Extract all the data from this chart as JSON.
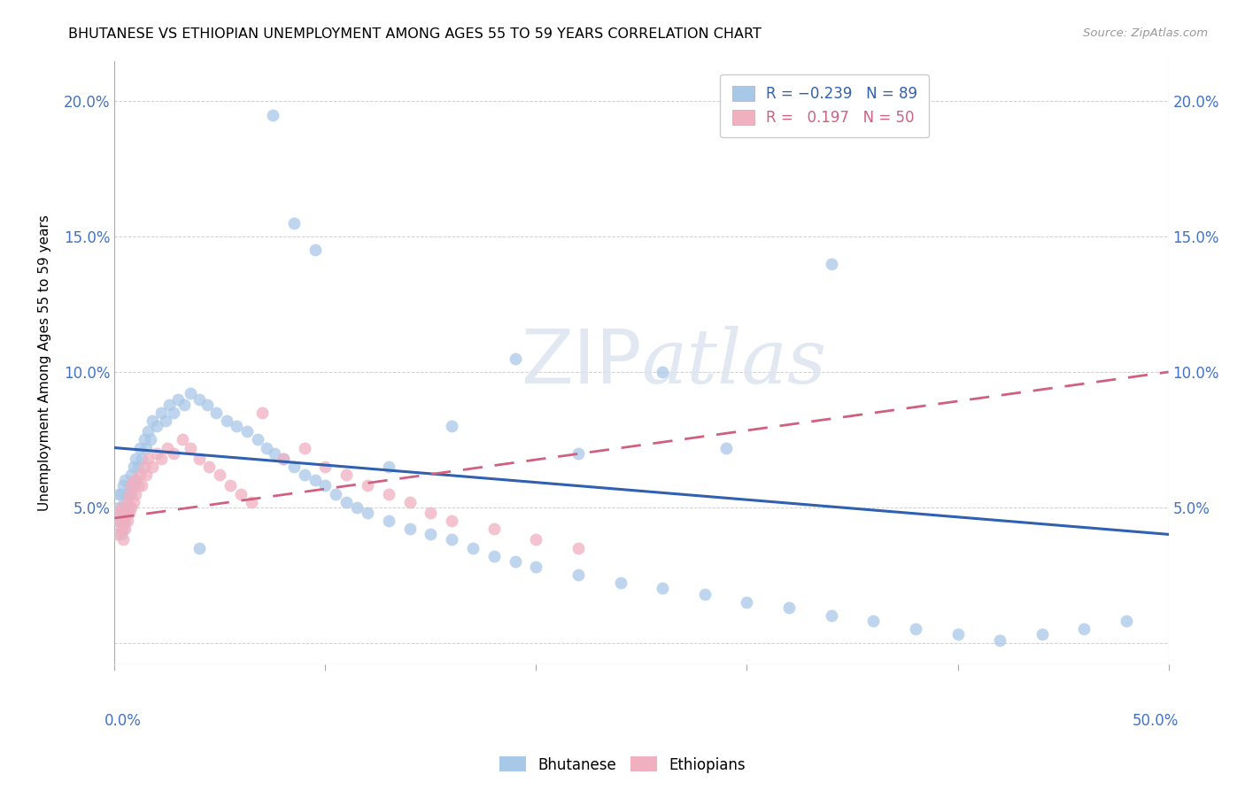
{
  "title": "BHUTANESE VS ETHIOPIAN UNEMPLOYMENT AMONG AGES 55 TO 59 YEARS CORRELATION CHART",
  "source": "Source: ZipAtlas.com",
  "ylabel": "Unemployment Among Ages 55 to 59 years",
  "yticks": [
    0.0,
    0.05,
    0.1,
    0.15,
    0.2
  ],
  "ytick_labels": [
    "",
    "5.0%",
    "10.0%",
    "15.0%",
    "20.0%"
  ],
  "xlim": [
    0.0,
    0.5
  ],
  "ylim": [
    -0.008,
    0.215
  ],
  "bhutanese_R": -0.239,
  "bhutanese_N": 89,
  "ethiopians_R": 0.197,
  "ethiopians_N": 50,
  "blue_color": "#a8c8e8",
  "pink_color": "#f0b0c0",
  "blue_line_color": "#3060b0",
  "pink_line_color": "#d06080",
  "watermark_color": "#e8e8f0",
  "blue_trend_x0": 0.0,
  "blue_trend_y0": 0.072,
  "blue_trend_x1": 0.5,
  "blue_trend_y1": 0.04,
  "pink_trend_x0": 0.0,
  "pink_trend_y0": 0.046,
  "pink_trend_x1": 0.5,
  "pink_trend_y1": 0.1,
  "bhutanese_x": [
    0.001,
    0.002,
    0.002,
    0.003,
    0.003,
    0.003,
    0.004,
    0.004,
    0.004,
    0.005,
    0.005,
    0.005,
    0.006,
    0.006,
    0.007,
    0.007,
    0.008,
    0.008,
    0.009,
    0.009,
    0.01,
    0.01,
    0.011,
    0.012,
    0.013,
    0.014,
    0.015,
    0.016,
    0.017,
    0.018,
    0.02,
    0.022,
    0.024,
    0.026,
    0.028,
    0.03,
    0.033,
    0.036,
    0.04,
    0.044,
    0.048,
    0.053,
    0.058,
    0.063,
    0.068,
    0.072,
    0.076,
    0.08,
    0.085,
    0.09,
    0.095,
    0.1,
    0.105,
    0.11,
    0.115,
    0.12,
    0.13,
    0.14,
    0.15,
    0.16,
    0.17,
    0.18,
    0.19,
    0.2,
    0.22,
    0.24,
    0.26,
    0.28,
    0.3,
    0.32,
    0.34,
    0.36,
    0.38,
    0.4,
    0.42,
    0.44,
    0.46,
    0.48,
    0.075,
    0.085,
    0.095,
    0.34,
    0.26,
    0.19,
    0.29,
    0.16,
    0.22,
    0.13,
    0.04
  ],
  "bhutanese_y": [
    0.045,
    0.05,
    0.055,
    0.04,
    0.048,
    0.055,
    0.042,
    0.05,
    0.058,
    0.045,
    0.052,
    0.06,
    0.048,
    0.055,
    0.05,
    0.058,
    0.055,
    0.062,
    0.058,
    0.065,
    0.06,
    0.068,
    0.065,
    0.072,
    0.068,
    0.075,
    0.072,
    0.078,
    0.075,
    0.082,
    0.08,
    0.085,
    0.082,
    0.088,
    0.085,
    0.09,
    0.088,
    0.092,
    0.09,
    0.088,
    0.085,
    0.082,
    0.08,
    0.078,
    0.075,
    0.072,
    0.07,
    0.068,
    0.065,
    0.062,
    0.06,
    0.058,
    0.055,
    0.052,
    0.05,
    0.048,
    0.045,
    0.042,
    0.04,
    0.038,
    0.035,
    0.032,
    0.03,
    0.028,
    0.025,
    0.022,
    0.02,
    0.018,
    0.015,
    0.013,
    0.01,
    0.008,
    0.005,
    0.003,
    0.001,
    0.003,
    0.005,
    0.008,
    0.195,
    0.155,
    0.145,
    0.14,
    0.1,
    0.105,
    0.072,
    0.08,
    0.07,
    0.065,
    0.035
  ],
  "ethiopians_x": [
    0.001,
    0.002,
    0.002,
    0.003,
    0.003,
    0.004,
    0.004,
    0.005,
    0.005,
    0.006,
    0.006,
    0.007,
    0.007,
    0.008,
    0.008,
    0.009,
    0.009,
    0.01,
    0.011,
    0.012,
    0.013,
    0.014,
    0.015,
    0.016,
    0.018,
    0.02,
    0.022,
    0.025,
    0.028,
    0.032,
    0.036,
    0.04,
    0.045,
    0.05,
    0.055,
    0.06,
    0.065,
    0.07,
    0.08,
    0.09,
    0.1,
    0.11,
    0.12,
    0.13,
    0.14,
    0.15,
    0.16,
    0.18,
    0.2,
    0.22
  ],
  "ethiopians_y": [
    0.04,
    0.045,
    0.048,
    0.042,
    0.05,
    0.038,
    0.045,
    0.042,
    0.048,
    0.045,
    0.052,
    0.048,
    0.055,
    0.05,
    0.058,
    0.052,
    0.06,
    0.055,
    0.058,
    0.062,
    0.058,
    0.065,
    0.062,
    0.068,
    0.065,
    0.07,
    0.068,
    0.072,
    0.07,
    0.075,
    0.072,
    0.068,
    0.065,
    0.062,
    0.058,
    0.055,
    0.052,
    0.085,
    0.068,
    0.072,
    0.065,
    0.062,
    0.058,
    0.055,
    0.052,
    0.048,
    0.045,
    0.042,
    0.038,
    0.035
  ]
}
